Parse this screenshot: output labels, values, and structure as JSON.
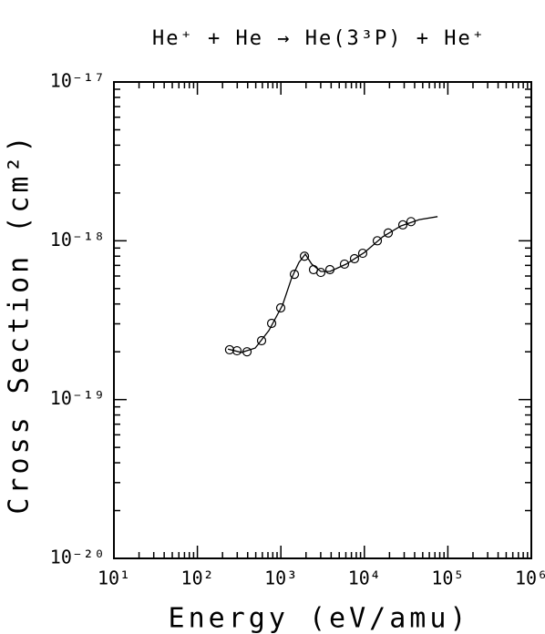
{
  "chart_data": {
    "type": "scatter",
    "title": "He⁺ + He → He(3³P) + He⁺",
    "x_label": "Energy (eV/amu)",
    "y_label": "Cross Section (cm²)",
    "log_x": true,
    "log_y": true,
    "grid": false,
    "xlim": [
      10,
      1000000
    ],
    "ylim": [
      1e-20,
      1e-17
    ],
    "xticks": [
      {
        "value": 10,
        "label": "10¹"
      },
      {
        "value": 100,
        "label": "10²"
      },
      {
        "value": 1000,
        "label": "10³"
      },
      {
        "value": 10000,
        "label": "10⁴"
      },
      {
        "value": 100000,
        "label": "10⁵"
      },
      {
        "value": 1000000,
        "label": "10⁶"
      }
    ],
    "yticks": [
      {
        "value": 1e-20,
        "label": "10⁻²⁰"
      },
      {
        "value": 1e-19,
        "label": "10⁻¹⁹"
      },
      {
        "value": 1e-18,
        "label": "10⁻¹⁸"
      },
      {
        "value": 1e-17,
        "label": "10⁻¹⁷"
      }
    ],
    "series": [
      {
        "type": "scatter",
        "marker": "circle",
        "color": "#000000",
        "x": [
          243,
          298,
          393,
          587,
          775,
          995,
          1452,
          1915,
          2460,
          3010,
          3865,
          5780,
          7620,
          9550,
          14290,
          19320,
          28900,
          36200
        ],
        "values": [
          2.06e-19,
          2.03e-19,
          2e-19,
          2.35e-19,
          3.02e-19,
          3.78e-19,
          6.15e-19,
          8e-19,
          6.58e-19,
          6.32e-19,
          6.58e-19,
          7.13e-19,
          7.71e-19,
          8.34e-19,
          1e-18,
          1.12e-18,
          1.26e-18,
          1.32e-18
        ]
      },
      {
        "type": "line",
        "color": "#000000",
        "x": [
          232,
          337,
          492,
          718,
          1047,
          1346,
          1645,
          1963,
          2340,
          3010,
          3865,
          6080,
          10050,
          16630,
          27480,
          45400,
          75200
        ],
        "values": [
          2.08e-19,
          1.98e-19,
          2.11e-19,
          2.72e-19,
          3.93e-19,
          5.83e-19,
          7.31e-19,
          8.24e-19,
          7.13e-19,
          6.41e-19,
          6.41e-19,
          7.13e-19,
          8.45e-19,
          1.06e-18,
          1.24e-18,
          1.36e-18,
          1.42e-18
        ]
      }
    ]
  }
}
